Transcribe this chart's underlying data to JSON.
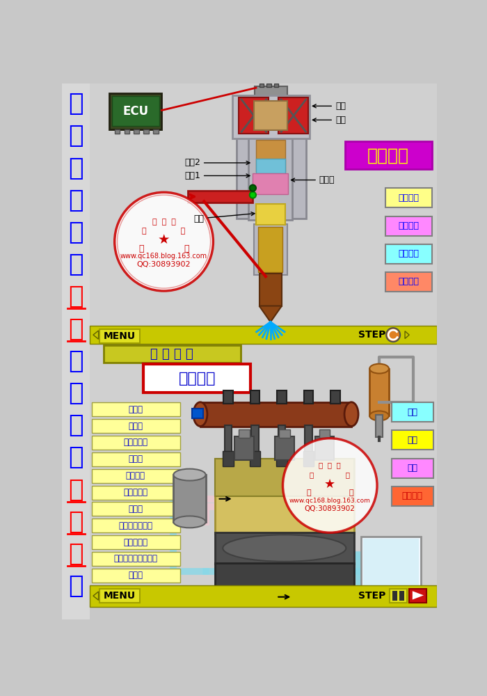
{
  "bg_color": "#c8c8c8",
  "title_chars": [
    "柴",
    "油",
    "电",
    "喷",
    "系",
    "统",
    "动",
    "画",
    "原",
    "理",
    "教",
    "程",
    "展",
    "示",
    "画",
    "面"
  ],
  "title_color_map": {
    "动": "#ff0000",
    "画": "#ff0000",
    "展": "#ff0000",
    "示": "#ff0000"
  },
  "title_default_color": "#0000ff",
  "right_buttons_top": [
    "信号输入",
    "喷射开始",
    "信号停止",
    "喷射结束"
  ],
  "right_buttons_colors": [
    "#ffff88",
    "#ff88ff",
    "#88ffff",
    "#ff8866"
  ],
  "right_buttons_bottom": [
    "吸入",
    "抽吸",
    "溢流",
    "异常高压"
  ],
  "right_buttons_bottom_colors": [
    "#88ffff",
    "#ffff00",
    "#ff88ff",
    "#ff6633"
  ],
  "left_menu_items": [
    "燃油箱",
    "进给泵",
    "燃油过滤器",
    "输送泵",
    "共用油轨",
    "流动阻尼器",
    "喷射器",
    "燃油温度传感器",
    "压力限制器",
    "共用油轨压力传感器",
    "溢流阀"
  ],
  "menu_bg": "#ffff99",
  "watermark_text1": "www.qc168.blog.163.com",
  "watermark_text2": "QQ:30893902"
}
